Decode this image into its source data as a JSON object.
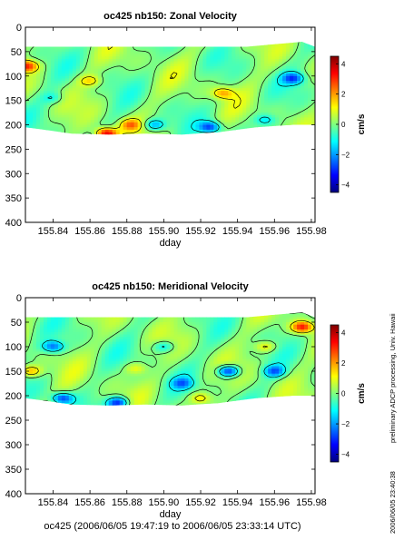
{
  "footer": "oc425 (2006/06/05 19:47:19 to 2006/06/05 23:33:14 UTC)",
  "side_note": "preliminary ADCP processing,  Univ. Hawaii",
  "side_stamp": "2006/06/05 23:40:38",
  "chart_data": [
    {
      "type": "heatmap",
      "title": "oc425 nb150: Zonal Velocity",
      "xlabel": "dday",
      "ylabel": "",
      "xlim": [
        155.825,
        155.982
      ],
      "ylim": [
        400,
        0
      ],
      "x_ticks": [
        155.84,
        155.86,
        155.88,
        155.9,
        155.92,
        155.94,
        155.96,
        155.98
      ],
      "y_ticks": [
        0,
        50,
        100,
        150,
        200,
        250,
        300,
        350,
        400
      ],
      "colorbar": {
        "label": "cm/s",
        "range": [
          -4.5,
          4.5
        ],
        "ticks": [
          4,
          2,
          0,
          -2,
          -4
        ]
      },
      "contour_levels": [
        -1,
        0,
        1
      ],
      "data_extent": {
        "depth_top": [
          [
            155.825,
            40
          ],
          [
            155.945,
            40
          ],
          [
            155.96,
            35
          ],
          [
            155.975,
            30
          ],
          [
            155.982,
            40
          ]
        ],
        "depth_bottom": [
          [
            155.825,
            205
          ],
          [
            155.835,
            210
          ],
          [
            155.85,
            218
          ],
          [
            155.87,
            220
          ],
          [
            155.89,
            218
          ],
          [
            155.91,
            220
          ],
          [
            155.93,
            215
          ],
          [
            155.95,
            205
          ],
          [
            155.97,
            200
          ],
          [
            155.982,
            200
          ]
        ]
      },
      "features": [
        {
          "kind": "max",
          "x": 155.869,
          "depth": 218,
          "value": 4.2
        },
        {
          "kind": "max",
          "x": 155.826,
          "depth": 80,
          "value": 3.2
        },
        {
          "kind": "max",
          "x": 155.882,
          "depth": 200,
          "value": 2.2
        },
        {
          "kind": "max",
          "x": 155.932,
          "depth": 135,
          "value": 2
        },
        {
          "kind": "max",
          "x": 155.86,
          "depth": 110,
          "value": 1.5
        },
        {
          "kind": "min",
          "x": 155.925,
          "depth": 205,
          "value": -3
        },
        {
          "kind": "min",
          "x": 155.97,
          "depth": 105,
          "value": -2.8
        },
        {
          "kind": "min",
          "x": 155.895,
          "depth": 200,
          "value": -2
        },
        {
          "kind": "min",
          "x": 155.955,
          "depth": 190,
          "value": -1.5
        },
        {
          "kind": "min",
          "x": 155.84,
          "depth": 145,
          "value": -1
        }
      ]
    },
    {
      "type": "heatmap",
      "title": "oc425 nb150: Meridional Velocity",
      "xlabel": "dday",
      "ylabel": "",
      "xlim": [
        155.825,
        155.982
      ],
      "ylim": [
        400,
        0
      ],
      "x_ticks": [
        155.84,
        155.86,
        155.88,
        155.9,
        155.92,
        155.94,
        155.96,
        155.98
      ],
      "y_ticks": [
        0,
        50,
        100,
        150,
        200,
        250,
        300,
        350,
        400
      ],
      "colorbar": {
        "label": "cm/s",
        "range": [
          -4.5,
          4.5
        ],
        "ticks": [
          4,
          2,
          0,
          -2,
          -4
        ]
      },
      "contour_levels": [
        -1,
        0,
        1
      ],
      "data_extent": {
        "depth_top": [
          [
            155.825,
            40
          ],
          [
            155.945,
            40
          ],
          [
            155.96,
            35
          ],
          [
            155.975,
            30
          ],
          [
            155.982,
            40
          ]
        ],
        "depth_bottom": [
          [
            155.825,
            205
          ],
          [
            155.835,
            210
          ],
          [
            155.85,
            218
          ],
          [
            155.87,
            220
          ],
          [
            155.89,
            218
          ],
          [
            155.91,
            220
          ],
          [
            155.93,
            215
          ],
          [
            155.95,
            205
          ],
          [
            155.97,
            200
          ],
          [
            155.982,
            200
          ]
        ]
      },
      "features": [
        {
          "kind": "min",
          "x": 155.84,
          "depth": 100,
          "value": -2.5
        },
        {
          "kind": "min",
          "x": 155.845,
          "depth": 205,
          "value": -3
        },
        {
          "kind": "min",
          "x": 155.875,
          "depth": 215,
          "value": -3.5
        },
        {
          "kind": "min",
          "x": 155.935,
          "depth": 150,
          "value": -3.5
        },
        {
          "kind": "min",
          "x": 155.96,
          "depth": 150,
          "value": -2.5
        },
        {
          "kind": "min",
          "x": 155.91,
          "depth": 175,
          "value": -2
        },
        {
          "kind": "min",
          "x": 155.9,
          "depth": 100,
          "value": -1.5
        },
        {
          "kind": "max",
          "x": 155.975,
          "depth": 60,
          "value": 3.5
        },
        {
          "kind": "max",
          "x": 155.828,
          "depth": 150,
          "value": 2
        },
        {
          "kind": "max",
          "x": 155.92,
          "depth": 205,
          "value": 1.5
        },
        {
          "kind": "max",
          "x": 155.955,
          "depth": 100,
          "value": 1.5
        },
        {
          "kind": "max",
          "x": 155.885,
          "depth": 145,
          "value": 1.2
        }
      ]
    }
  ]
}
